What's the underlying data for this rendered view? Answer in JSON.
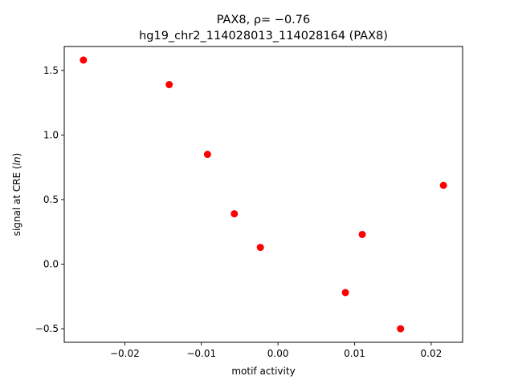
{
  "chart_data": {
    "type": "scatter",
    "title_line1": "PAX8, ρ= −0.76",
    "title_line2": "hg19_chr2_114028013_114028164 (PAX8)",
    "xlabel": "motif activity",
    "ylabel": "signal at CRE (",
    "ylabel_italic": "ln",
    "ylabel_close": ")",
    "xlim": [
      -0.0279,
      0.0241
    ],
    "ylim": [
      -0.605,
      1.685
    ],
    "xticks": [
      -0.02,
      -0.01,
      0.0,
      0.01,
      0.02
    ],
    "xtick_labels": [
      "−0.02",
      "−0.01",
      "0.00",
      "0.01",
      "0.02"
    ],
    "yticks": [
      -0.5,
      0.0,
      0.5,
      1.0,
      1.5
    ],
    "ytick_labels": [
      "−0.5",
      "0.0",
      "0.5",
      "1.0",
      "1.5"
    ],
    "marker_color": "#ff0000",
    "grid": false,
    "points": [
      {
        "x": -0.0254,
        "y": 1.58
      },
      {
        "x": -0.0142,
        "y": 1.39
      },
      {
        "x": -0.0092,
        "y": 0.85
      },
      {
        "x": -0.0057,
        "y": 0.39
      },
      {
        "x": -0.0023,
        "y": 0.13
      },
      {
        "x": 0.0088,
        "y": -0.22
      },
      {
        "x": 0.011,
        "y": 0.23
      },
      {
        "x": 0.016,
        "y": -0.5
      },
      {
        "x": 0.0216,
        "y": 0.61
      }
    ]
  }
}
